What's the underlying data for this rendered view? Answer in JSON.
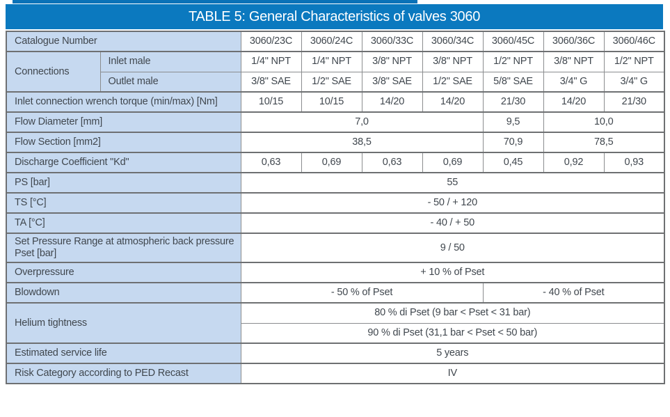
{
  "title": "TABLE 5: General Characteristics of valves 3060",
  "colors": {
    "header_blue": "#0b79bf",
    "top_strip_blue": "#0a72b8",
    "label_background": "#c6d9f0",
    "border_thick": "#6e7072",
    "border_thin": "#8a8c8e",
    "text": "#40474e",
    "title_text": "#ffffff"
  },
  "table": {
    "catalogue_columns": [
      "3060/23C",
      "3060/24C",
      "3060/33C",
      "3060/34C",
      "3060/45C",
      "3060/36C",
      "3060/46C"
    ],
    "rows": [
      {
        "name": "catalogue-number",
        "top": "thick",
        "label": {
          "text": "Catalogue Number",
          "colspan": 2
        },
        "cells": [
          {
            "text": "3060/23C"
          },
          {
            "text": "3060/24C"
          },
          {
            "text": "3060/33C"
          },
          {
            "text": "3060/34C"
          },
          {
            "text": "3060/45C"
          },
          {
            "text": "3060/36C"
          },
          {
            "text": "3060/46C"
          }
        ]
      },
      {
        "name": "connections-inlet-male",
        "top": "thick",
        "group": {
          "text": "Connections",
          "rowspan": 2,
          "colspan": 1
        },
        "label": {
          "text": "Inlet male",
          "colspan": 1
        },
        "cells": [
          {
            "text": "1/4\" NPT"
          },
          {
            "text": "1/4\" NPT"
          },
          {
            "text": "3/8\" NPT"
          },
          {
            "text": "3/8\" NPT"
          },
          {
            "text": "1/2\" NPT"
          },
          {
            "text": "3/8\" NPT"
          },
          {
            "text": "1/2\" NPT"
          }
        ]
      },
      {
        "name": "connections-outlet-male",
        "top": "thin",
        "label": {
          "text": "Outlet male",
          "colspan": 1
        },
        "cells": [
          {
            "text": "3/8\" SAE"
          },
          {
            "text": "1/2\" SAE"
          },
          {
            "text": "3/8\" SAE"
          },
          {
            "text": "1/2\" SAE"
          },
          {
            "text": "5/8\" SAE"
          },
          {
            "text": "3/4\" G"
          },
          {
            "text": "3/4\" G"
          }
        ]
      },
      {
        "name": "inlet-wrench-torque",
        "top": "thick",
        "label": {
          "text": "Inlet connection wrench torque (min/max) [Nm]",
          "colspan": 2
        },
        "cells": [
          {
            "text": "10/15"
          },
          {
            "text": "10/15"
          },
          {
            "text": "14/20"
          },
          {
            "text": "14/20"
          },
          {
            "text": "21/30"
          },
          {
            "text": "14/20"
          },
          {
            "text": "21/30"
          }
        ]
      },
      {
        "name": "flow-diameter",
        "top": "thick",
        "label": {
          "text": "Flow Diameter [mm]",
          "colspan": 2
        },
        "cells": [
          {
            "text": "7,0",
            "span": 4
          },
          {
            "text": "9,5",
            "span": 1
          },
          {
            "text": "10,0",
            "span": 2
          }
        ]
      },
      {
        "name": "flow-section",
        "top": "thick",
        "label": {
          "text": "Flow Section [mm2]",
          "colspan": 2
        },
        "cells": [
          {
            "text": "38,5",
            "span": 4
          },
          {
            "text": "70,9",
            "span": 1
          },
          {
            "text": "78,5",
            "span": 2
          }
        ]
      },
      {
        "name": "discharge-coefficient",
        "top": "thick",
        "label": {
          "text": "Discharge Coefficient \"Kd\"",
          "colspan": 2
        },
        "cells": [
          {
            "text": "0,63"
          },
          {
            "text": "0,69"
          },
          {
            "text": "0,63"
          },
          {
            "text": "0,69"
          },
          {
            "text": "0,45"
          },
          {
            "text": "0,92"
          },
          {
            "text": "0,93"
          }
        ]
      },
      {
        "name": "ps-bar",
        "top": "thick",
        "label": {
          "text": "PS [bar]",
          "colspan": 2
        },
        "cells": [
          {
            "text": "55",
            "span": 7
          }
        ]
      },
      {
        "name": "ts-celsius",
        "top": "thick",
        "label": {
          "text": "TS [°C]",
          "colspan": 2
        },
        "cells": [
          {
            "text": "- 50  /  + 120",
            "span": 7
          }
        ]
      },
      {
        "name": "ta-celsius",
        "top": "thick",
        "label": {
          "text": "TA [°C]",
          "colspan": 2
        },
        "cells": [
          {
            "text": "- 40  /  + 50",
            "span": 7
          }
        ]
      },
      {
        "name": "set-pressure-range",
        "top": "thick",
        "label": {
          "text": "Set Pressure Range at atmospheric back pressure Pset [bar]",
          "colspan": 2
        },
        "cells": [
          {
            "text": "9  /  50",
            "span": 7
          }
        ]
      },
      {
        "name": "overpressure",
        "top": "thick",
        "label": {
          "text": "Overpressure",
          "colspan": 2
        },
        "cells": [
          {
            "text": "+ 10 % of Pset",
            "span": 7
          }
        ]
      },
      {
        "name": "blowdown",
        "top": "thick",
        "label": {
          "text": "Blowdown",
          "colspan": 2
        },
        "cells": [
          {
            "text": "- 50 % of Pset",
            "span": 4
          },
          {
            "text": "- 40 % of Pset",
            "span": 3
          }
        ]
      },
      {
        "name": "helium-tightness-low",
        "top": "thick",
        "group": {
          "text": "Helium tightness",
          "rowspan": 2,
          "colspan": 2
        },
        "cells": [
          {
            "text": "80 % di Pset   (9 bar < Pset < 31 bar)",
            "span": 7
          }
        ]
      },
      {
        "name": "helium-tightness-high",
        "top": "thin",
        "cells": [
          {
            "text": "90 % di Pset   (31,1 bar < Pset < 50 bar)",
            "span": 7
          }
        ]
      },
      {
        "name": "estimated-service-life",
        "top": "thick",
        "label": {
          "text": "Estimated service life",
          "colspan": 2
        },
        "cells": [
          {
            "text": "5 years",
            "span": 7
          }
        ]
      },
      {
        "name": "risk-category",
        "top": "thick",
        "label": {
          "text": "Risk Category according to PED Recast",
          "colspan": 2
        },
        "cells": [
          {
            "text": "IV",
            "span": 7
          }
        ]
      }
    ]
  }
}
